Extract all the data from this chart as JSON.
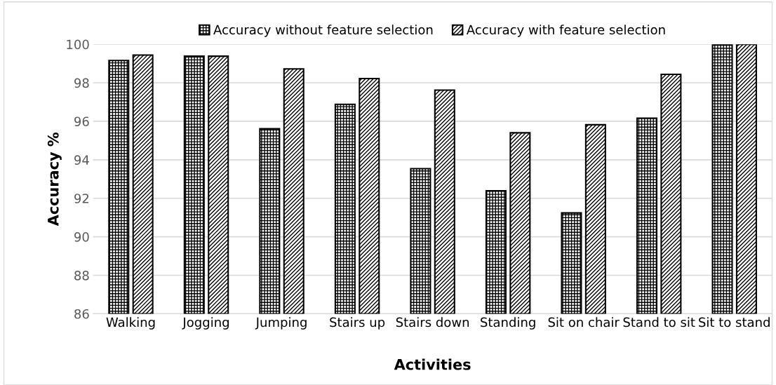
{
  "chart_data": {
    "type": "bar",
    "xlabel": "Activities",
    "ylabel": "Accuracy %",
    "categories": [
      "Walking",
      "Jogging",
      "Jumping",
      "Stairs up",
      "Stairs down",
      "Standing",
      "Sit on chair",
      "Stand to sit",
      "Sit to stand"
    ],
    "series": [
      {
        "name": "Accuracy without feature selection",
        "color": "#000000",
        "values": [
          99.16,
          99.38,
          95.61,
          96.88,
          93.54,
          92.39,
          91.24,
          96.16,
          100
        ]
      },
      {
        "name": "Accuracy with feature selection",
        "color": "#000000",
        "values": [
          99.44,
          99.38,
          98.72,
          98.22,
          97.62,
          95.4,
          95.82,
          98.44,
          100
        ]
      }
    ],
    "ylim": [
      86,
      100
    ],
    "yticks": [
      86,
      88,
      90,
      92,
      94,
      96,
      98,
      100
    ],
    "grid": "y",
    "legend": "top"
  }
}
